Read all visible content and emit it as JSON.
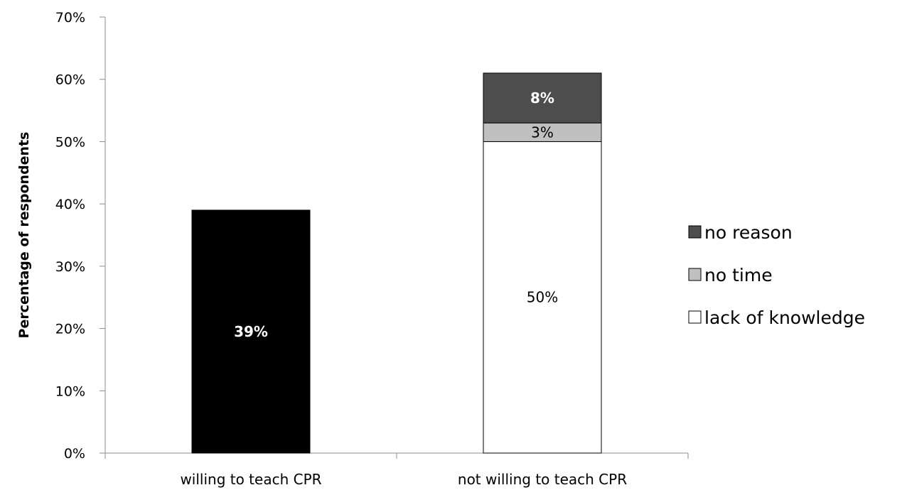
{
  "chart_data": {
    "type": "bar",
    "stacked": true,
    "title": "",
    "xlabel": "",
    "ylabel": "Percentage of respondents",
    "ylim": [
      0,
      70
    ],
    "ytick_step": 10,
    "ytick_labels": [
      "0%",
      "10%",
      "20%",
      "30%",
      "40%",
      "50%",
      "60%",
      "70%"
    ],
    "categories": [
      "willing to teach CPR",
      "not willing to teach CPR"
    ],
    "grid": false,
    "legend_position": "right",
    "series": [
      {
        "key": "willing",
        "values": [
          39,
          0
        ],
        "labels": [
          "39%",
          ""
        ],
        "color": "#000000",
        "label_color": "#ffffff",
        "label_bold": true
      },
      {
        "key": "lack",
        "name": "lack of knowledge",
        "values": [
          0,
          50
        ],
        "labels": [
          "",
          "50%"
        ],
        "color": "#ffffff",
        "label_color": "#000000",
        "label_bold": false
      },
      {
        "key": "notime",
        "name": "no time",
        "values": [
          0,
          3
        ],
        "labels": [
          "",
          "3%"
        ],
        "color": "#c0c0c0",
        "label_color": "#000000",
        "label_bold": false
      },
      {
        "key": "noreason",
        "name": "no reason",
        "values": [
          0,
          8
        ],
        "labels": [
          "",
          "8%"
        ],
        "color": "#4d4d4d",
        "label_color": "#ffffff",
        "label_bold": true
      }
    ],
    "legend": [
      "no reason",
      "no time",
      "lack of knowledge"
    ]
  }
}
